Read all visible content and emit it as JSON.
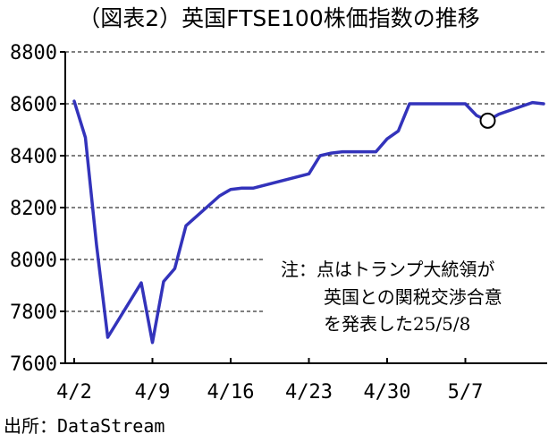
{
  "chart_data": {
    "type": "line",
    "title": "（図表2）英国FTSE100株価指数の推移",
    "xlabel": "",
    "ylabel": "",
    "ylim": [
      7600,
      8800
    ],
    "yticks": [
      "8800",
      "8600",
      "8400",
      "8200",
      "8000",
      "7800",
      "7600"
    ],
    "ytick_values": [
      8800,
      8600,
      8400,
      8200,
      8000,
      7800,
      7600
    ],
    "xtick_labels": [
      "4/2",
      "4/9",
      "4/16",
      "4/23",
      "4/30",
      "5/7"
    ],
    "grid": true,
    "line_color": "#3333bb",
    "series": [
      {
        "x": [
          "2025-04-01",
          "2025-04-02",
          "2025-04-03",
          "2025-04-04",
          "2025-04-07",
          "2025-04-08",
          "2025-04-09",
          "2025-04-10",
          "2025-04-11",
          "2025-04-14",
          "2025-04-15",
          "2025-04-16",
          "2025-04-17",
          "2025-04-22",
          "2025-04-23",
          "2025-04-24",
          "2025-04-25",
          "2025-04-28",
          "2025-04-29",
          "2025-04-30",
          "2025-05-01",
          "2025-05-02",
          "2025-05-06",
          "2025-05-07",
          "2025-05-08",
          "2025-05-09",
          "2025-05-12",
          "2025-05-13"
        ],
        "values": [
          8610,
          8470,
          8055,
          7700,
          7910,
          7680,
          7915,
          7965,
          8130,
          8245,
          8270,
          8275,
          8275,
          8330,
          8400,
          8410,
          8415,
          8415,
          8465,
          8495,
          8600,
          8600,
          8600,
          8555,
          8535,
          8560,
          8605,
          8600
        ]
      }
    ],
    "highlight": {
      "x": "2025-05-08",
      "value": 8535
    },
    "annotation_lines": [
      "注：点はトランプ大統領が",
      "英国との関税交渉合意",
      "を発表した25/5/8"
    ],
    "source": "出所：DataStream"
  }
}
